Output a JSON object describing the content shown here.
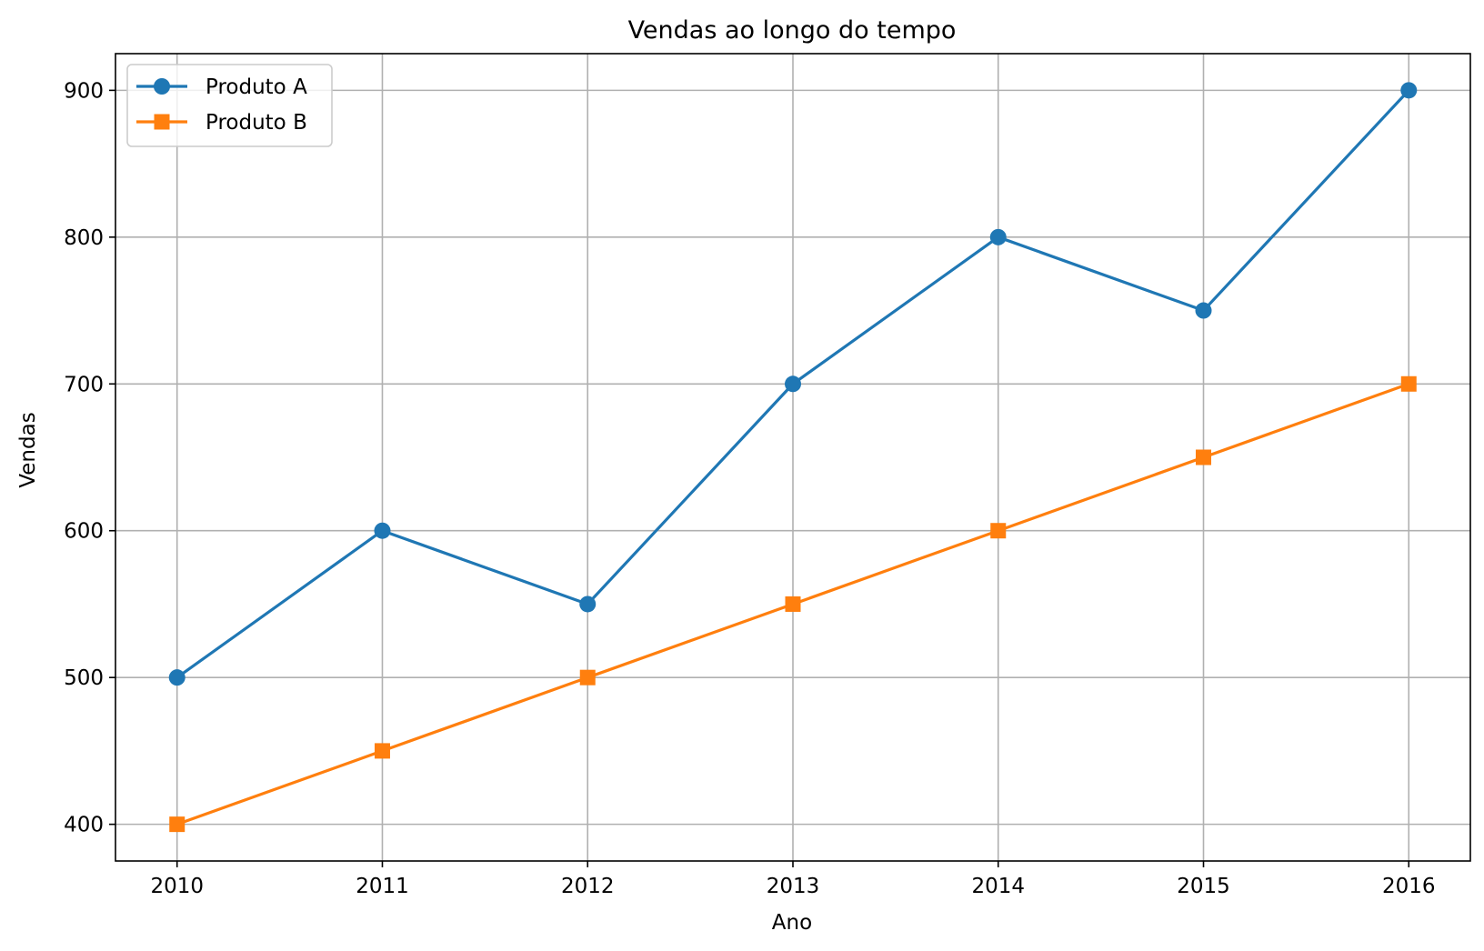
{
  "chart_data": {
    "type": "line",
    "title": "Vendas ao longo do tempo",
    "xlabel": "Ano",
    "ylabel": "Vendas",
    "x": [
      2010,
      2011,
      2012,
      2013,
      2014,
      2015,
      2016
    ],
    "xticks": [
      "2010",
      "2011",
      "2012",
      "2013",
      "2014",
      "2015",
      "2016"
    ],
    "yticks": [
      400,
      500,
      600,
      700,
      800,
      900
    ],
    "xlim": [
      2009.7,
      2016.3
    ],
    "ylim": [
      375,
      925
    ],
    "grid": true,
    "legend_position": "top-left",
    "series": [
      {
        "name": "Produto A",
        "values": [
          500,
          600,
          550,
          700,
          800,
          750,
          900
        ],
        "color": "#1f77b4",
        "marker": "circle"
      },
      {
        "name": "Produto B",
        "values": [
          400,
          450,
          500,
          550,
          600,
          650,
          700
        ],
        "color": "#ff7f0e",
        "marker": "square"
      }
    ]
  }
}
